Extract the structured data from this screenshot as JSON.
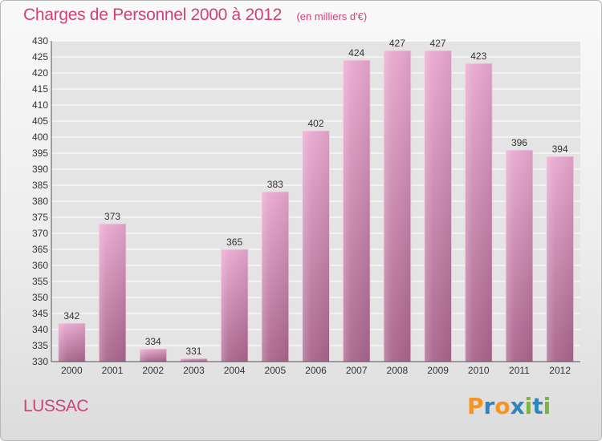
{
  "header": {
    "title": "Charges de Personnel 2000 à 2012",
    "subtitle": "(en milliers d'€)"
  },
  "footer": {
    "location": "LUSSAC",
    "brand": "Proxiti"
  },
  "colors": {
    "accent": "#d0407a",
    "bar_light": "#e9a8cf",
    "bar_dark": "#a9658c",
    "grid": "#ffffff",
    "axis_text": "#333333",
    "brand_letters": [
      "#f7941d",
      "#2e86c1",
      "#f7941d",
      "#2e86c1",
      "#7cb342",
      "#2e86c1",
      "#7cb342"
    ]
  },
  "chart_data": {
    "type": "bar",
    "title": "Charges de Personnel 2000 à 2012",
    "subtitle": "(en milliers d'€)",
    "xlabel": "",
    "ylabel": "",
    "categories": [
      "2000",
      "2001",
      "2002",
      "2003",
      "2004",
      "2005",
      "2006",
      "2007",
      "2008",
      "2009",
      "2010",
      "2011",
      "2012"
    ],
    "values": [
      342,
      373,
      334,
      331,
      365,
      383,
      402,
      424,
      427,
      427,
      423,
      396,
      394
    ],
    "ylim": [
      330,
      430
    ],
    "ytick_step": 5,
    "grid": true,
    "data_labels": true
  }
}
